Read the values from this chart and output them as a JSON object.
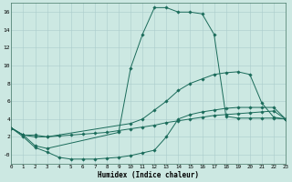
{
  "title": "",
  "xlabel": "Humidex (Indice chaleur)",
  "xlim": [
    0,
    23
  ],
  "ylim": [
    -1.0,
    17.0
  ],
  "xticks": [
    0,
    1,
    2,
    3,
    4,
    5,
    6,
    7,
    8,
    9,
    10,
    11,
    12,
    13,
    14,
    15,
    16,
    17,
    18,
    19,
    20,
    21,
    22,
    23
  ],
  "yticks": [
    0,
    2,
    4,
    6,
    8,
    10,
    12,
    14,
    16
  ],
  "ytick_labels": [
    "-0",
    "2",
    "4",
    "6",
    "8",
    "10",
    "12",
    "14",
    "16"
  ],
  "background_color": "#cce8e2",
  "grid_color": "#b0d0cc",
  "line_color": "#1a6b5a",
  "lines": [
    {
      "x": [
        0,
        1,
        2,
        3,
        4,
        5,
        6,
        7,
        8,
        9,
        10,
        11,
        12,
        13,
        14,
        15,
        16,
        17,
        18,
        19,
        20,
        21,
        22,
        23
      ],
      "y": [
        3.0,
        2.2,
        2.2,
        2.0,
        2.1,
        2.2,
        2.3,
        2.4,
        2.5,
        2.7,
        2.9,
        3.1,
        3.3,
        3.6,
        3.8,
        4.0,
        4.2,
        4.4,
        4.5,
        4.6,
        4.7,
        4.8,
        4.9,
        4.0
      ]
    },
    {
      "x": [
        0,
        1,
        2,
        3,
        10,
        11,
        12,
        13,
        14,
        15,
        16,
        17,
        18,
        19,
        20,
        21,
        22,
        23
      ],
      "y": [
        3.0,
        2.2,
        2.0,
        2.0,
        3.5,
        4.0,
        5.0,
        6.0,
        7.2,
        8.0,
        8.5,
        9.0,
        9.2,
        9.3,
        9.0,
        5.8,
        4.2,
        4.0
      ]
    },
    {
      "x": [
        0,
        1,
        2,
        3,
        9,
        10,
        11,
        12,
        13,
        14,
        15,
        16,
        17,
        18,
        19,
        20,
        21,
        22,
        23
      ],
      "y": [
        3.0,
        2.2,
        1.0,
        0.7,
        2.5,
        9.7,
        13.5,
        16.5,
        16.5,
        16.0,
        16.0,
        15.8,
        13.5,
        4.3,
        4.1,
        4.1,
        4.1,
        4.1,
        4.0
      ]
    },
    {
      "x": [
        0,
        1,
        2,
        3,
        4,
        5,
        6,
        7,
        8,
        9,
        10,
        11,
        12,
        13,
        14,
        15,
        16,
        17,
        18,
        19,
        20,
        21,
        22,
        23
      ],
      "y": [
        3.0,
        2.0,
        0.8,
        0.3,
        -0.3,
        -0.5,
        -0.5,
        -0.5,
        -0.4,
        -0.3,
        -0.1,
        0.2,
        0.5,
        2.0,
        4.0,
        4.5,
        4.8,
        5.0,
        5.2,
        5.3,
        5.3,
        5.3,
        5.3,
        4.0
      ]
    }
  ],
  "figsize": [
    3.2,
    2.0
  ],
  "dpi": 100
}
